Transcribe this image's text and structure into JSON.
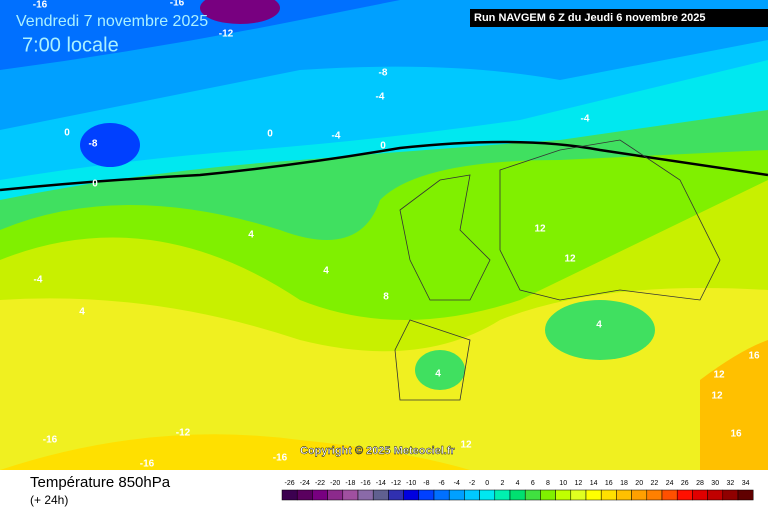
{
  "header": {
    "date": "Vendredi 7 novembre 2025",
    "time": "7:00 locale",
    "run": "Run NAVGEM 6 Z du Jeudi 6 novembre 2025"
  },
  "copyright": "Copyright © 2025 Meteociel.fr",
  "footer": {
    "title": "Température 850hPa",
    "subtitle": "(+ 24h)"
  },
  "colorbar": {
    "labels": [
      -26,
      -24,
      -22,
      -20,
      -18,
      -16,
      -14,
      -12,
      -10,
      -8,
      -6,
      -4,
      -2,
      0,
      2,
      4,
      6,
      8,
      10,
      12,
      14,
      16,
      18,
      20,
      22,
      24,
      26,
      28,
      30,
      32,
      34
    ],
    "colors": [
      "#3c0050",
      "#5a005f",
      "#780080",
      "#8c2a8c",
      "#a050a0",
      "#8a6aa8",
      "#606090",
      "#3030b0",
      "#0000e0",
      "#0040ff",
      "#0070ff",
      "#00a0ff",
      "#00c8ff",
      "#00e8f0",
      "#00f0b0",
      "#00e070",
      "#40e040",
      "#80f000",
      "#c0ff00",
      "#e0ff20",
      "#ffff00",
      "#ffe000",
      "#ffc000",
      "#ffa000",
      "#ff8000",
      "#ff5000",
      "#ff1000",
      "#e00000",
      "#c00000",
      "#900000",
      "#600000"
    ]
  },
  "contour_labels": [
    "-16",
    "-16",
    "-12",
    "-8",
    "-4",
    "-4",
    "-8",
    "0",
    "0",
    "-4",
    "0",
    "0",
    "4",
    "4",
    "12",
    "12",
    "8",
    "-4",
    "4",
    "4",
    "4",
    "16",
    "12",
    "12",
    "16",
    "-12",
    "-16",
    "-16",
    "-16",
    "12"
  ]
}
